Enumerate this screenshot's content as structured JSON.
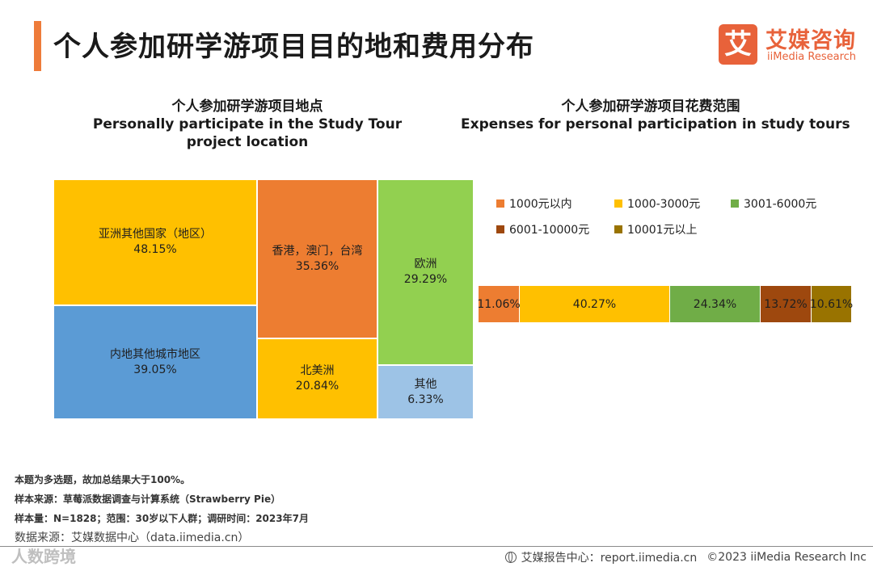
{
  "page": {
    "title": "个人参加研学游项目目的地和费用分布"
  },
  "brand": {
    "badge": "艾",
    "name_cn": "艾媒咨询",
    "name_en": "iiMedia Research",
    "accent": "#e8623a"
  },
  "left_chart": {
    "title_cn": "个人参加研学游项目地点",
    "title_en_1": "Personally participate in the Study Tour",
    "title_en_2": "project location",
    "cells": [
      {
        "label": "亚洲其他国家（地区）",
        "value": "48.15%",
        "color": "#ffc000"
      },
      {
        "label": "内地其他城市地区",
        "value": "39.05%",
        "color": "#5b9bd5"
      },
      {
        "label": "香港，澳门，台湾",
        "value": "35.36%",
        "color": "#ed7d31"
      },
      {
        "label": "北美洲",
        "value": "20.84%",
        "color": "#ffc000"
      },
      {
        "label": "欧洲",
        "value": "29.29%",
        "color": "#92d050"
      },
      {
        "label": "其他",
        "value": "6.33%",
        "color": "#9dc3e6"
      }
    ]
  },
  "right_chart": {
    "title_cn": "个人参加研学游项目花费范围",
    "title_en": "Expenses for personal participation in study tours",
    "legend": [
      {
        "label": "1000元以内",
        "color": "#ed7d31"
      },
      {
        "label": "1000-3000元",
        "color": "#ffc000"
      },
      {
        "label": "3001-6000元",
        "color": "#70ad47"
      },
      {
        "label": "6001-10000元",
        "color": "#9e480e"
      },
      {
        "label": "10001元以上",
        "color": "#997300"
      }
    ],
    "segments": [
      {
        "label": "11.06%",
        "value": 11.06
      },
      {
        "label": "40.27%",
        "value": 40.27
      },
      {
        "label": "24.34%",
        "value": 24.34
      },
      {
        "label": "13.72%",
        "value": 13.72
      },
      {
        "label": "10.61%",
        "value": 10.61
      }
    ]
  },
  "chart_data": [
    {
      "type": "treemap",
      "title": "个人参加研学游项目地点 Personally participate in the Study Tour project location",
      "categories": [
        "亚洲其他国家（地区）",
        "内地其他城市地区",
        "香港，澳门，台湾",
        "北美洲",
        "欧洲",
        "其他"
      ],
      "values": [
        48.15,
        39.05,
        35.36,
        20.84,
        29.29,
        6.33
      ],
      "unit": "%"
    },
    {
      "type": "bar",
      "orientation": "horizontal-stacked",
      "title": "个人参加研学游项目花费范围 Expenses for personal participation in study tours",
      "series": [
        {
          "name": "1000元以内",
          "values": [
            11.06
          ]
        },
        {
          "name": "1000-3000元",
          "values": [
            40.27
          ]
        },
        {
          "name": "3001-6000元",
          "values": [
            24.34
          ]
        },
        {
          "name": "6001-10000元",
          "values": [
            13.72
          ]
        },
        {
          "name": "10001元以上",
          "values": [
            10.61
          ]
        }
      ],
      "unit": "%",
      "legend": "top"
    }
  ],
  "notes": {
    "line1": "本题为多选题，故加总结果大于100%。",
    "line2": "样本来源：草莓派数据调查与计算系统（Strawberry Pie）",
    "line3": "样本量：N=1828；范围：30岁以下人群；调研时间：2023年7月",
    "source": "数据来源：艾媒数据中心（data.iimedia.cn）"
  },
  "footer": {
    "watermark": "人数跨境",
    "report_center": "艾媒报告中心：report.iimedia.cn",
    "copyright": "©2023  iiMedia Research  Inc"
  }
}
